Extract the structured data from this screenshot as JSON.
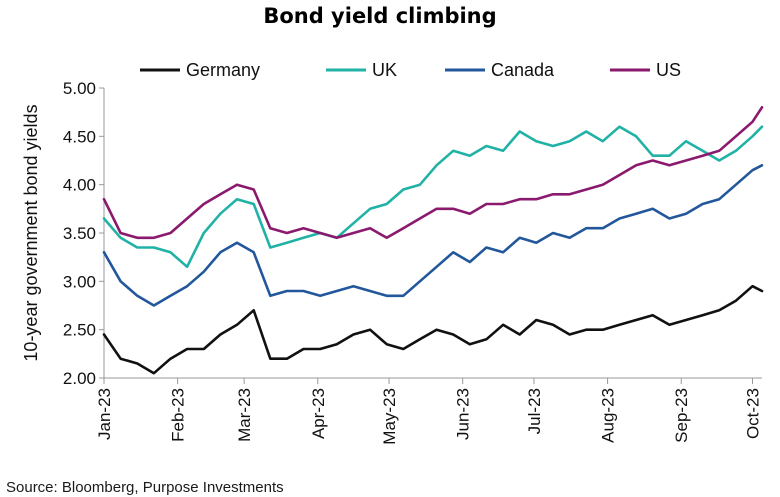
{
  "source": "Source: Bloomberg, Purpose Investments",
  "chart_data": {
    "type": "line",
    "title": "Bond yield climbing",
    "xlabel": "",
    "ylabel": "10-year government bond yields",
    "ylim": [
      2.0,
      5.0
    ],
    "yticks": [
      "2.00",
      "2.50",
      "3.00",
      "3.50",
      "4.00",
      "4.50",
      "5.00"
    ],
    "x_tick_labels": [
      "Jan-23",
      "Feb-23",
      "Mar-23",
      "Apr-23",
      "May-23",
      "Jun-23",
      "Jul-23",
      "Aug-23",
      "Sep-23",
      "Oct-23"
    ],
    "x_tick_dates": [
      "2023-01-01",
      "2023-02-01",
      "2023-03-01",
      "2023-04-01",
      "2023-05-01",
      "2023-06-01",
      "2023-07-01",
      "2023-08-01",
      "2023-09-01",
      "2023-10-01"
    ],
    "xlim": [
      "2023-01-01",
      "2023-10-05"
    ],
    "grid": false,
    "legend_position": "top",
    "x": [
      "2023-01-01",
      "2023-01-08",
      "2023-01-15",
      "2023-01-22",
      "2023-01-29",
      "2023-02-05",
      "2023-02-12",
      "2023-02-19",
      "2023-02-26",
      "2023-03-05",
      "2023-03-12",
      "2023-03-19",
      "2023-03-26",
      "2023-04-02",
      "2023-04-09",
      "2023-04-16",
      "2023-04-23",
      "2023-04-30",
      "2023-05-07",
      "2023-05-14",
      "2023-05-21",
      "2023-05-28",
      "2023-06-04",
      "2023-06-11",
      "2023-06-18",
      "2023-06-25",
      "2023-07-02",
      "2023-07-09",
      "2023-07-16",
      "2023-07-23",
      "2023-07-30",
      "2023-08-06",
      "2023-08-13",
      "2023-08-20",
      "2023-08-27",
      "2023-09-03",
      "2023-09-10",
      "2023-09-17",
      "2023-09-24",
      "2023-10-01",
      "2023-10-05"
    ],
    "series": [
      {
        "name": "Germany",
        "color": "#111111",
        "values": [
          2.45,
          2.2,
          2.15,
          2.05,
          2.2,
          2.3,
          2.3,
          2.45,
          2.55,
          2.7,
          2.2,
          2.2,
          2.3,
          2.3,
          2.35,
          2.45,
          2.5,
          2.35,
          2.3,
          2.4,
          2.5,
          2.45,
          2.35,
          2.4,
          2.55,
          2.45,
          2.6,
          2.55,
          2.45,
          2.5,
          2.5,
          2.55,
          2.6,
          2.65,
          2.55,
          2.6,
          2.65,
          2.7,
          2.8,
          2.95,
          2.9
        ]
      },
      {
        "name": "UK",
        "color": "#21b2a6",
        "values": [
          3.65,
          3.45,
          3.35,
          3.35,
          3.3,
          3.15,
          3.5,
          3.7,
          3.85,
          3.8,
          3.35,
          3.4,
          3.45,
          3.5,
          3.45,
          3.6,
          3.75,
          3.8,
          3.95,
          4.0,
          4.2,
          4.35,
          4.3,
          4.4,
          4.35,
          4.55,
          4.45,
          4.4,
          4.45,
          4.55,
          4.45,
          4.6,
          4.5,
          4.3,
          4.3,
          4.45,
          4.35,
          4.25,
          4.35,
          4.5,
          4.6
        ]
      },
      {
        "name": "Canada",
        "color": "#22579b",
        "values": [
          3.3,
          3.0,
          2.85,
          2.75,
          2.85,
          2.95,
          3.1,
          3.3,
          3.4,
          3.3,
          2.85,
          2.9,
          2.9,
          2.85,
          2.9,
          2.95,
          2.9,
          2.85,
          2.85,
          3.0,
          3.15,
          3.3,
          3.2,
          3.35,
          3.3,
          3.45,
          3.4,
          3.5,
          3.45,
          3.55,
          3.55,
          3.65,
          3.7,
          3.75,
          3.65,
          3.7,
          3.8,
          3.85,
          4.0,
          4.15,
          4.2
        ]
      },
      {
        "name": "US",
        "color": "#8b1a6e",
        "values": [
          3.85,
          3.5,
          3.45,
          3.45,
          3.5,
          3.65,
          3.8,
          3.9,
          4.0,
          3.95,
          3.55,
          3.5,
          3.55,
          3.5,
          3.45,
          3.5,
          3.55,
          3.45,
          3.55,
          3.65,
          3.75,
          3.75,
          3.7,
          3.8,
          3.8,
          3.85,
          3.85,
          3.9,
          3.9,
          3.95,
          4.0,
          4.1,
          4.2,
          4.25,
          4.2,
          4.25,
          4.3,
          4.35,
          4.5,
          4.65,
          4.8
        ]
      }
    ]
  }
}
